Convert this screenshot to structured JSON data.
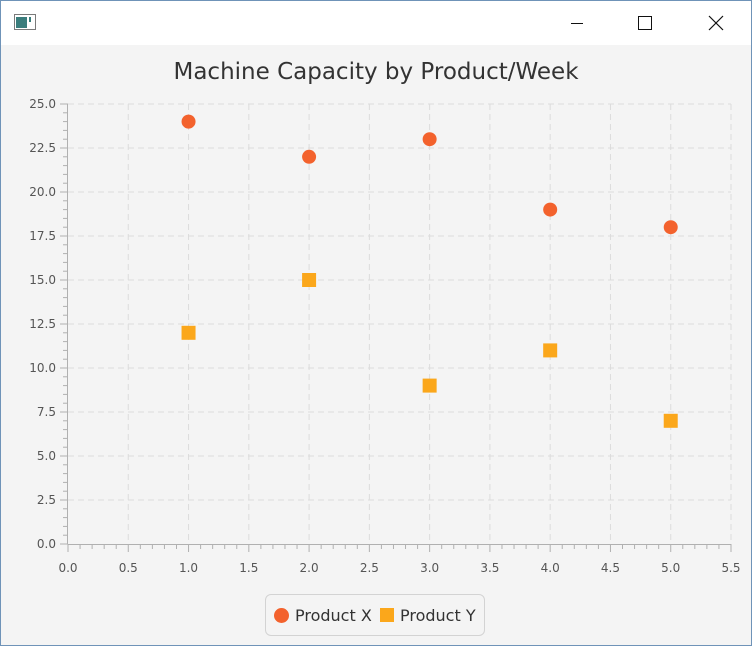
{
  "window": {
    "controls": {
      "minimize": "minimize-icon",
      "maximize": "maximize-icon",
      "close": "close-icon"
    }
  },
  "chart_data": {
    "type": "scatter",
    "title": "Machine Capacity by Product/Week",
    "xlabel": "",
    "ylabel": "",
    "xlim": [
      0.0,
      5.5
    ],
    "ylim": [
      0.0,
      25.0
    ],
    "x_ticks": [
      "0.0",
      "0.5",
      "1.0",
      "1.5",
      "2.0",
      "2.5",
      "3.0",
      "3.5",
      "4.0",
      "4.5",
      "5.0",
      "5.5"
    ],
    "y_ticks": [
      "0.0",
      "2.5",
      "5.0",
      "7.5",
      "10.0",
      "12.5",
      "15.0",
      "17.5",
      "20.0",
      "22.5",
      "25.0"
    ],
    "grid": true,
    "legend_position": "bottom-center",
    "series": [
      {
        "name": "Product X",
        "marker": "circle",
        "color": "#f3622d",
        "points": [
          [
            1,
            24
          ],
          [
            2,
            22
          ],
          [
            3,
            23
          ],
          [
            4,
            19
          ],
          [
            5,
            18
          ]
        ]
      },
      {
        "name": "Product Y",
        "marker": "square",
        "color": "#fba71b",
        "points": [
          [
            1,
            12
          ],
          [
            2,
            15
          ],
          [
            3,
            9
          ],
          [
            4,
            11
          ],
          [
            5,
            7
          ]
        ]
      }
    ]
  }
}
